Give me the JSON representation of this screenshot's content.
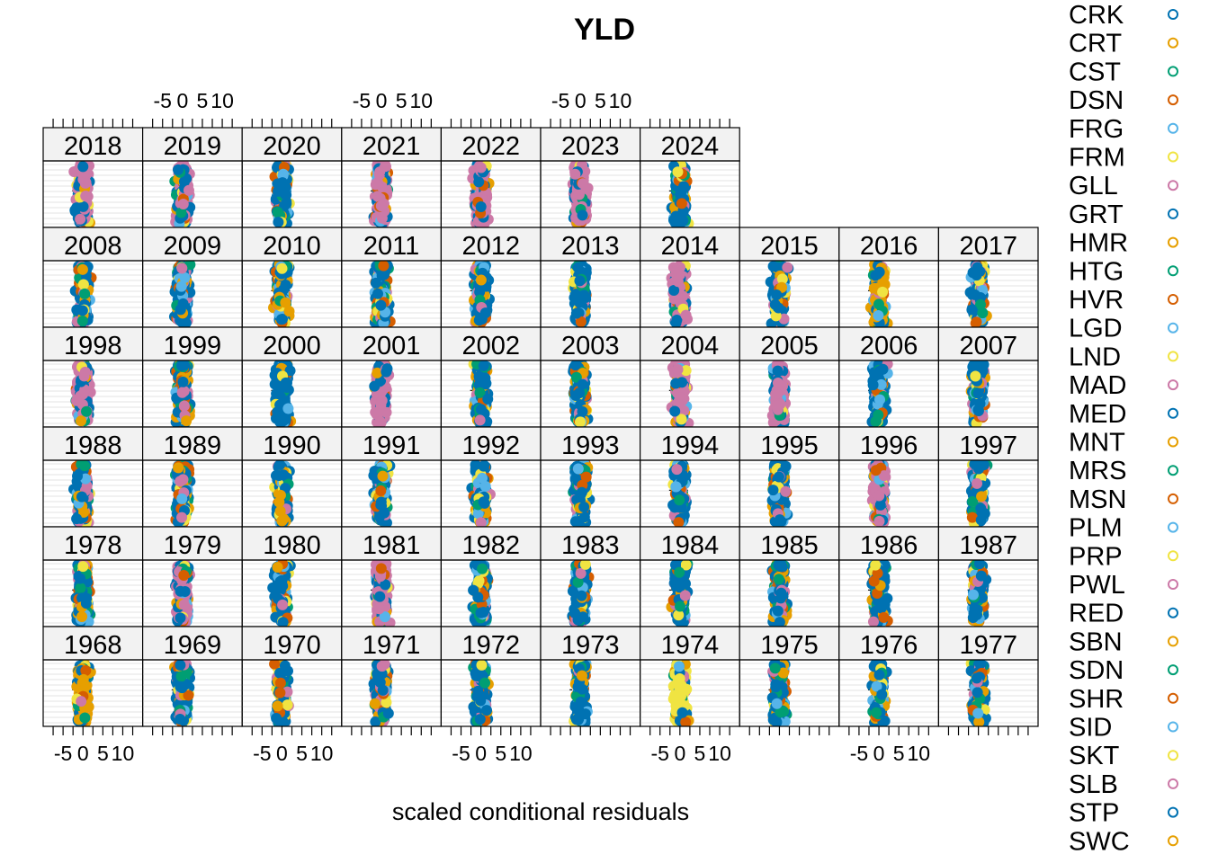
{
  "chart_data": {
    "type": "scatter",
    "title": "YLD",
    "xlabel": "scaled conditional residuals",
    "ylabel": "",
    "xlim": [
      -10,
      15
    ],
    "xticks": [
      -5,
      0,
      5,
      10
    ],
    "xtick_labels": [
      "-5",
      "0",
      "5",
      "10"
    ],
    "grid": true,
    "legend_position": "right",
    "panel_rows": [
      [
        "2018",
        "2019",
        "2020",
        "2021",
        "2022",
        "2023",
        "2024"
      ],
      [
        "2008",
        "2009",
        "2010",
        "2011",
        "2012",
        "2013",
        "2014",
        "2015",
        "2016",
        "2017"
      ],
      [
        "1998",
        "1999",
        "2000",
        "2001",
        "2002",
        "2003",
        "2004",
        "2005",
        "2006",
        "2007"
      ],
      [
        "1988",
        "1989",
        "1990",
        "1991",
        "1992",
        "1993",
        "1994",
        "1995",
        "1996",
        "1997"
      ],
      [
        "1978",
        "1979",
        "1980",
        "1981",
        "1982",
        "1983",
        "1984",
        "1985",
        "1986",
        "1987"
      ],
      [
        "1968",
        "1969",
        "1970",
        "1971",
        "1972",
        "1973",
        "1974",
        "1975",
        "1976",
        "1977"
      ]
    ],
    "series": [
      {
        "name": "CRK",
        "color": "#0072B2"
      },
      {
        "name": "CRT",
        "color": "#E69F00"
      },
      {
        "name": "CST",
        "color": "#009E73"
      },
      {
        "name": "DSN",
        "color": "#D55E00"
      },
      {
        "name": "FRG",
        "color": "#56B4E9"
      },
      {
        "name": "FRM",
        "color": "#F0E442"
      },
      {
        "name": "GLL",
        "color": "#CC79A7"
      },
      {
        "name": "GRT",
        "color": "#0072B2"
      },
      {
        "name": "HMR",
        "color": "#E69F00"
      },
      {
        "name": "HTG",
        "color": "#009E73"
      },
      {
        "name": "HVR",
        "color": "#D55E00"
      },
      {
        "name": "LGD",
        "color": "#56B4E9"
      },
      {
        "name": "LND",
        "color": "#F0E442"
      },
      {
        "name": "MAD",
        "color": "#CC79A7"
      },
      {
        "name": "MED",
        "color": "#0072B2"
      },
      {
        "name": "MNT",
        "color": "#E69F00"
      },
      {
        "name": "MRS",
        "color": "#009E73"
      },
      {
        "name": "MSN",
        "color": "#D55E00"
      },
      {
        "name": "PLM",
        "color": "#56B4E9"
      },
      {
        "name": "PRP",
        "color": "#F0E442"
      },
      {
        "name": "PWL",
        "color": "#CC79A7"
      },
      {
        "name": "RED",
        "color": "#0072B2"
      },
      {
        "name": "SBN",
        "color": "#E69F00"
      },
      {
        "name": "SDN",
        "color": "#009E73"
      },
      {
        "name": "SHR",
        "color": "#D55E00"
      },
      {
        "name": "SID",
        "color": "#56B4E9"
      },
      {
        "name": "SKT",
        "color": "#F0E442"
      },
      {
        "name": "SLB",
        "color": "#CC79A7"
      },
      {
        "name": "STP",
        "color": "#0072B2"
      },
      {
        "name": "SWC",
        "color": "#E69F00"
      }
    ],
    "dominant_series_by_year": {
      "1968": "SWC",
      "1974": "SKT",
      "1979": "GLL",
      "1981": "GLL",
      "2004": "GLL",
      "2005": "GLL",
      "2016": "SWC",
      "2019": "GLL",
      "2021": "GLL",
      "2018": "GLL",
      "2000": "STP",
      "1998": "GLL",
      "2001": "GLL",
      "2014": "GLL",
      "2022": "GLL",
      "2023": "GLL",
      "1996": "GLL"
    }
  }
}
